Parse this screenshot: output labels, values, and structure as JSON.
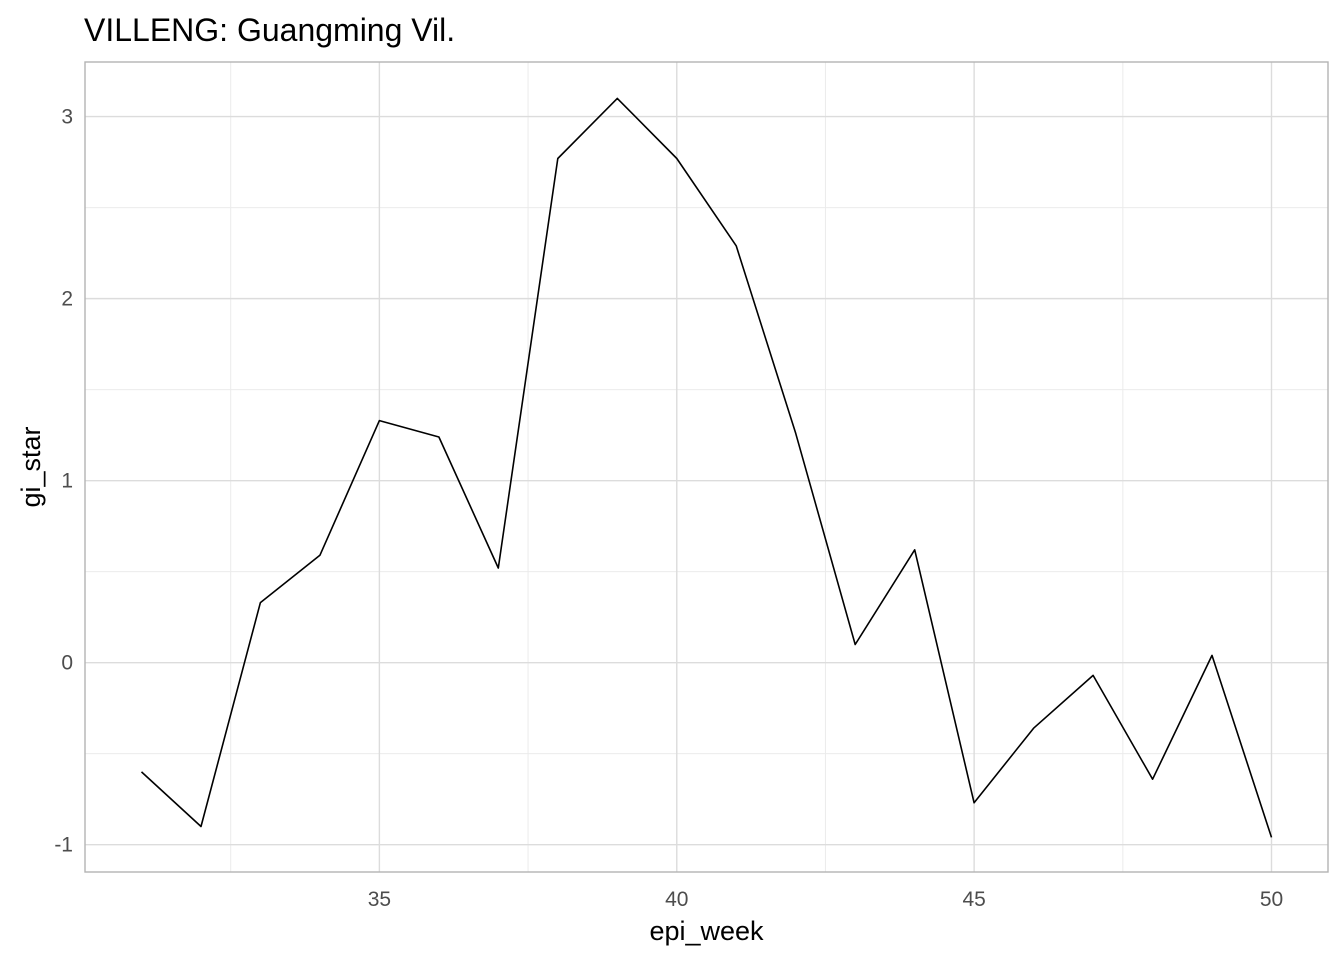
{
  "chart_data": {
    "type": "line",
    "title": "VILLENG: Guangming Vil.",
    "xlabel": "epi_week",
    "ylabel": "gi_star",
    "xlim": [
      30.05,
      50.95
    ],
    "ylim": [
      -1.15,
      3.3
    ],
    "x_ticks": [
      35,
      40,
      45,
      50
    ],
    "x_minor_ticks": [
      32.5,
      37.5,
      42.5,
      47.5
    ],
    "y_ticks": [
      -1,
      0,
      1,
      2,
      3
    ],
    "y_minor_ticks": [
      -0.5,
      0.5,
      1.5,
      2.5
    ],
    "grid": true,
    "legend": "none",
    "line_color": "#000000",
    "x": [
      31,
      32,
      33,
      34,
      35,
      36,
      37,
      38,
      39,
      40,
      41,
      42,
      43,
      44,
      45,
      46,
      47,
      48,
      49,
      50
    ],
    "values": [
      -0.6,
      -0.9,
      0.33,
      0.59,
      1.33,
      1.24,
      0.52,
      2.77,
      3.1,
      2.77,
      2.29,
      1.26,
      0.1,
      0.62,
      -0.77,
      -0.36,
      -0.07,
      -0.64,
      0.04,
      -0.96
    ]
  }
}
